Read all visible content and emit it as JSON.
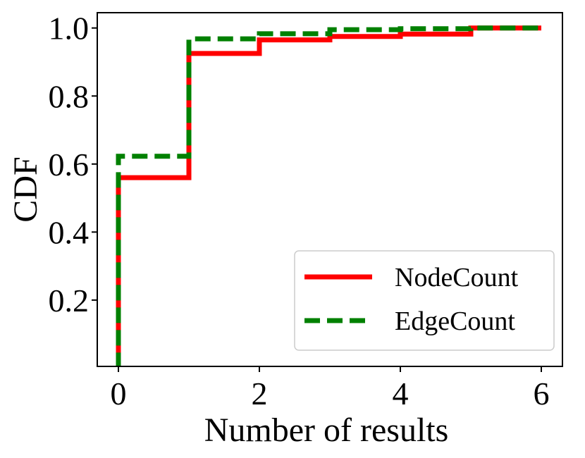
{
  "chart_data": {
    "type": "line",
    "step": true,
    "xlabel": "Number of results",
    "ylabel": "CDF",
    "xlim": [
      -0.3,
      6.3
    ],
    "ylim": [
      0.005,
      1.045
    ],
    "x_ticks": [
      "0",
      "2",
      "4",
      "6"
    ],
    "y_ticks": [
      "0.2",
      "0.4",
      "0.6",
      "0.8",
      "1.0"
    ],
    "grid": false,
    "legend_position": "lower-right",
    "series": [
      {
        "name": "NodeCount",
        "color": "#ff0000",
        "line_style": "solid",
        "points": [
          [
            0,
            0.0
          ],
          [
            0,
            0.56
          ],
          [
            1,
            0.56
          ],
          [
            1,
            0.925
          ],
          [
            2,
            0.925
          ],
          [
            2,
            0.965
          ],
          [
            3,
            0.965
          ],
          [
            3,
            0.975
          ],
          [
            4,
            0.975
          ],
          [
            4,
            0.982
          ],
          [
            5,
            0.982
          ],
          [
            5,
            1.0
          ],
          [
            6,
            1.0
          ]
        ]
      },
      {
        "name": "EdgeCount",
        "color": "#008000",
        "line_style": "dashed",
        "points": [
          [
            0,
            0.0
          ],
          [
            0,
            0.623
          ],
          [
            1,
            0.623
          ],
          [
            1,
            0.968
          ],
          [
            2,
            0.968
          ],
          [
            2,
            0.983
          ],
          [
            3,
            0.983
          ],
          [
            3,
            0.995
          ],
          [
            4,
            0.995
          ],
          [
            4,
            0.998
          ],
          [
            5,
            0.998
          ],
          [
            5,
            1.0
          ],
          [
            6,
            1.0
          ]
        ]
      }
    ]
  }
}
